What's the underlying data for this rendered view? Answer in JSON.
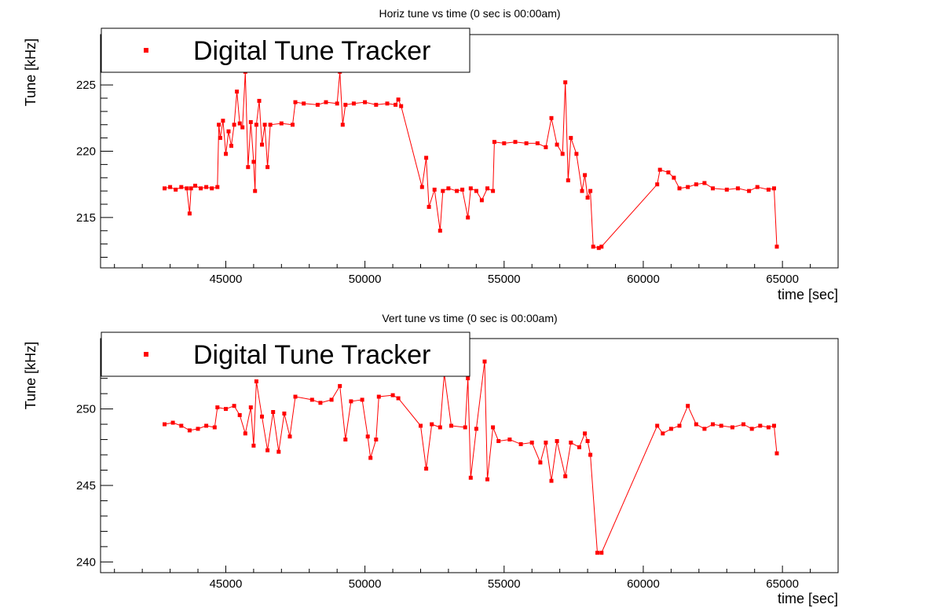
{
  "chart_data": [
    {
      "type": "line",
      "title": "Horiz tune vs time (0 sec is 00:00am)",
      "xlabel": "time [sec]",
      "ylabel": "Tune [kHz]",
      "xlim": [
        40500,
        67000
      ],
      "ylim": [
        211.2,
        228.8
      ],
      "xticks": [
        45000,
        50000,
        55000,
        60000,
        65000
      ],
      "xtick_labels": [
        "45000",
        "50000",
        "55000",
        "60000",
        "65000"
      ],
      "yticks": [
        215,
        220,
        225
      ],
      "ytick_labels": [
        "215",
        "220",
        "225"
      ],
      "grid": false,
      "legend": {
        "position": "top-left",
        "entries": [
          "Digital Tune Tracker"
        ]
      },
      "series": [
        {
          "name": "Digital Tune Tracker",
          "color": "#ff0000",
          "marker": "square",
          "points": [
            [
              42800,
              217.2
            ],
            [
              43000,
              217.3
            ],
            [
              43200,
              217.1
            ],
            [
              43400,
              217.3
            ],
            [
              43600,
              217.2
            ],
            [
              43700,
              215.3
            ],
            [
              43750,
              217.2
            ],
            [
              43900,
              217.4
            ],
            [
              44100,
              217.2
            ],
            [
              44300,
              217.3
            ],
            [
              44500,
              217.2
            ],
            [
              44700,
              217.3
            ],
            [
              44750,
              222.0
            ],
            [
              44800,
              221.0
            ],
            [
              44900,
              222.3
            ],
            [
              45000,
              219.8
            ],
            [
              45100,
              221.5
            ],
            [
              45200,
              220.4
            ],
            [
              45300,
              222.0
            ],
            [
              45400,
              224.5
            ],
            [
              45500,
              222.1
            ],
            [
              45600,
              221.8
            ],
            [
              45700,
              226.0
            ],
            [
              45800,
              218.8
            ],
            [
              45900,
              222.2
            ],
            [
              46000,
              219.2
            ],
            [
              46050,
              217.0
            ],
            [
              46100,
              222.0
            ],
            [
              46200,
              223.8
            ],
            [
              46300,
              220.5
            ],
            [
              46400,
              222.0
            ],
            [
              46500,
              218.8
            ],
            [
              46600,
              222.0
            ],
            [
              47000,
              222.1
            ],
            [
              47400,
              222.0
            ],
            [
              47500,
              223.7
            ],
            [
              47800,
              223.6
            ],
            [
              48300,
              223.5
            ],
            [
              48600,
              223.7
            ],
            [
              49000,
              223.6
            ],
            [
              49100,
              226.0
            ],
            [
              49200,
              222.0
            ],
            [
              49300,
              223.5
            ],
            [
              49600,
              223.6
            ],
            [
              50000,
              223.7
            ],
            [
              50400,
              223.5
            ],
            [
              50800,
              223.6
            ],
            [
              51100,
              223.5
            ],
            [
              51200,
              223.9
            ],
            [
              51300,
              223.4
            ],
            [
              52050,
              217.3
            ],
            [
              52200,
              219.5
            ],
            [
              52300,
              215.8
            ],
            [
              52500,
              217.1
            ],
            [
              52700,
              214.0
            ],
            [
              52800,
              217.0
            ],
            [
              53000,
              217.2
            ],
            [
              53300,
              217.0
            ],
            [
              53500,
              217.1
            ],
            [
              53700,
              215.0
            ],
            [
              53800,
              217.2
            ],
            [
              54000,
              217.0
            ],
            [
              54200,
              216.3
            ],
            [
              54400,
              217.2
            ],
            [
              54600,
              217.0
            ],
            [
              54650,
              220.7
            ],
            [
              55000,
              220.6
            ],
            [
              55400,
              220.7
            ],
            [
              55800,
              220.6
            ],
            [
              56200,
              220.6
            ],
            [
              56500,
              220.3
            ],
            [
              56700,
              222.5
            ],
            [
              56900,
              220.5
            ],
            [
              57100,
              219.8
            ],
            [
              57200,
              225.2
            ],
            [
              57300,
              217.8
            ],
            [
              57400,
              221.0
            ],
            [
              57600,
              219.8
            ],
            [
              57800,
              217.0
            ],
            [
              57900,
              218.2
            ],
            [
              58000,
              216.5
            ],
            [
              58100,
              217.0
            ],
            [
              58200,
              212.8
            ],
            [
              58400,
              212.7
            ],
            [
              58500,
              212.8
            ],
            [
              60500,
              217.5
            ],
            [
              60600,
              218.6
            ],
            [
              60900,
              218.4
            ],
            [
              61100,
              218.0
            ],
            [
              61300,
              217.2
            ],
            [
              61600,
              217.3
            ],
            [
              61900,
              217.5
            ],
            [
              62200,
              217.6
            ],
            [
              62500,
              217.2
            ],
            [
              63000,
              217.1
            ],
            [
              63400,
              217.2
            ],
            [
              63800,
              217.0
            ],
            [
              64100,
              217.3
            ],
            [
              64500,
              217.1
            ],
            [
              64700,
              217.2
            ],
            [
              64800,
              212.8
            ]
          ]
        }
      ]
    },
    {
      "type": "line",
      "title": "Vert tune vs time (0 sec is 00:00am)",
      "xlabel": "time [sec]",
      "ylabel": "Tune [kHz]",
      "xlim": [
        40500,
        67000
      ],
      "ylim": [
        239.3,
        254.6
      ],
      "xticks": [
        45000,
        50000,
        55000,
        60000,
        65000
      ],
      "xtick_labels": [
        "45000",
        "50000",
        "55000",
        "60000",
        "65000"
      ],
      "yticks": [
        240,
        245,
        250
      ],
      "ytick_labels": [
        "240",
        "245",
        "250"
      ],
      "grid": false,
      "legend": {
        "position": "top-left",
        "entries": [
          "Digital Tune Tracker"
        ]
      },
      "series": [
        {
          "name": "Digital Tune Tracker",
          "color": "#ff0000",
          "marker": "square",
          "points": [
            [
              42800,
              249.0
            ],
            [
              43100,
              249.1
            ],
            [
              43400,
              248.9
            ],
            [
              43700,
              248.6
            ],
            [
              44000,
              248.7
            ],
            [
              44300,
              248.9
            ],
            [
              44600,
              248.8
            ],
            [
              44700,
              250.1
            ],
            [
              45000,
              250.0
            ],
            [
              45300,
              250.2
            ],
            [
              45500,
              249.6
            ],
            [
              45700,
              248.4
            ],
            [
              45900,
              250.1
            ],
            [
              46000,
              247.6
            ],
            [
              46100,
              251.8
            ],
            [
              46300,
              249.5
            ],
            [
              46500,
              247.3
            ],
            [
              46700,
              249.8
            ],
            [
              46900,
              247.2
            ],
            [
              47100,
              249.7
            ],
            [
              47300,
              248.2
            ],
            [
              47500,
              250.8
            ],
            [
              48100,
              250.6
            ],
            [
              48400,
              250.4
            ],
            [
              48800,
              250.6
            ],
            [
              49100,
              251.5
            ],
            [
              49300,
              248.0
            ],
            [
              49500,
              250.5
            ],
            [
              49900,
              250.6
            ],
            [
              50100,
              248.2
            ],
            [
              50200,
              246.8
            ],
            [
              50400,
              248.0
            ],
            [
              50500,
              250.8
            ],
            [
              51000,
              250.9
            ],
            [
              51200,
              250.7
            ],
            [
              52000,
              248.9
            ],
            [
              52200,
              246.1
            ],
            [
              52400,
              249.0
            ],
            [
              52700,
              248.8
            ],
            [
              52850,
              252.3
            ],
            [
              53100,
              248.9
            ],
            [
              53600,
              248.8
            ],
            [
              53700,
              252.0
            ],
            [
              53800,
              245.5
            ],
            [
              54000,
              248.7
            ],
            [
              54300,
              253.1
            ],
            [
              54400,
              245.4
            ],
            [
              54600,
              248.8
            ],
            [
              54800,
              247.9
            ],
            [
              55200,
              248.0
            ],
            [
              55600,
              247.7
            ],
            [
              56000,
              247.8
            ],
            [
              56300,
              246.5
            ],
            [
              56500,
              247.8
            ],
            [
              56700,
              245.3
            ],
            [
              56900,
              247.9
            ],
            [
              57200,
              245.6
            ],
            [
              57400,
              247.8
            ],
            [
              57700,
              247.5
            ],
            [
              57900,
              248.4
            ],
            [
              58000,
              247.9
            ],
            [
              58100,
              247.0
            ],
            [
              58350,
              240.6
            ],
            [
              58500,
              240.6
            ],
            [
              60500,
              248.9
            ],
            [
              60700,
              248.4
            ],
            [
              61000,
              248.7
            ],
            [
              61300,
              248.9
            ],
            [
              61600,
              250.2
            ],
            [
              61900,
              249.0
            ],
            [
              62200,
              248.7
            ],
            [
              62500,
              249.0
            ],
            [
              62800,
              248.9
            ],
            [
              63200,
              248.8
            ],
            [
              63600,
              249.0
            ],
            [
              63900,
              248.7
            ],
            [
              64200,
              248.9
            ],
            [
              64500,
              248.8
            ],
            [
              64700,
              248.9
            ],
            [
              64800,
              247.1
            ]
          ]
        }
      ]
    }
  ]
}
